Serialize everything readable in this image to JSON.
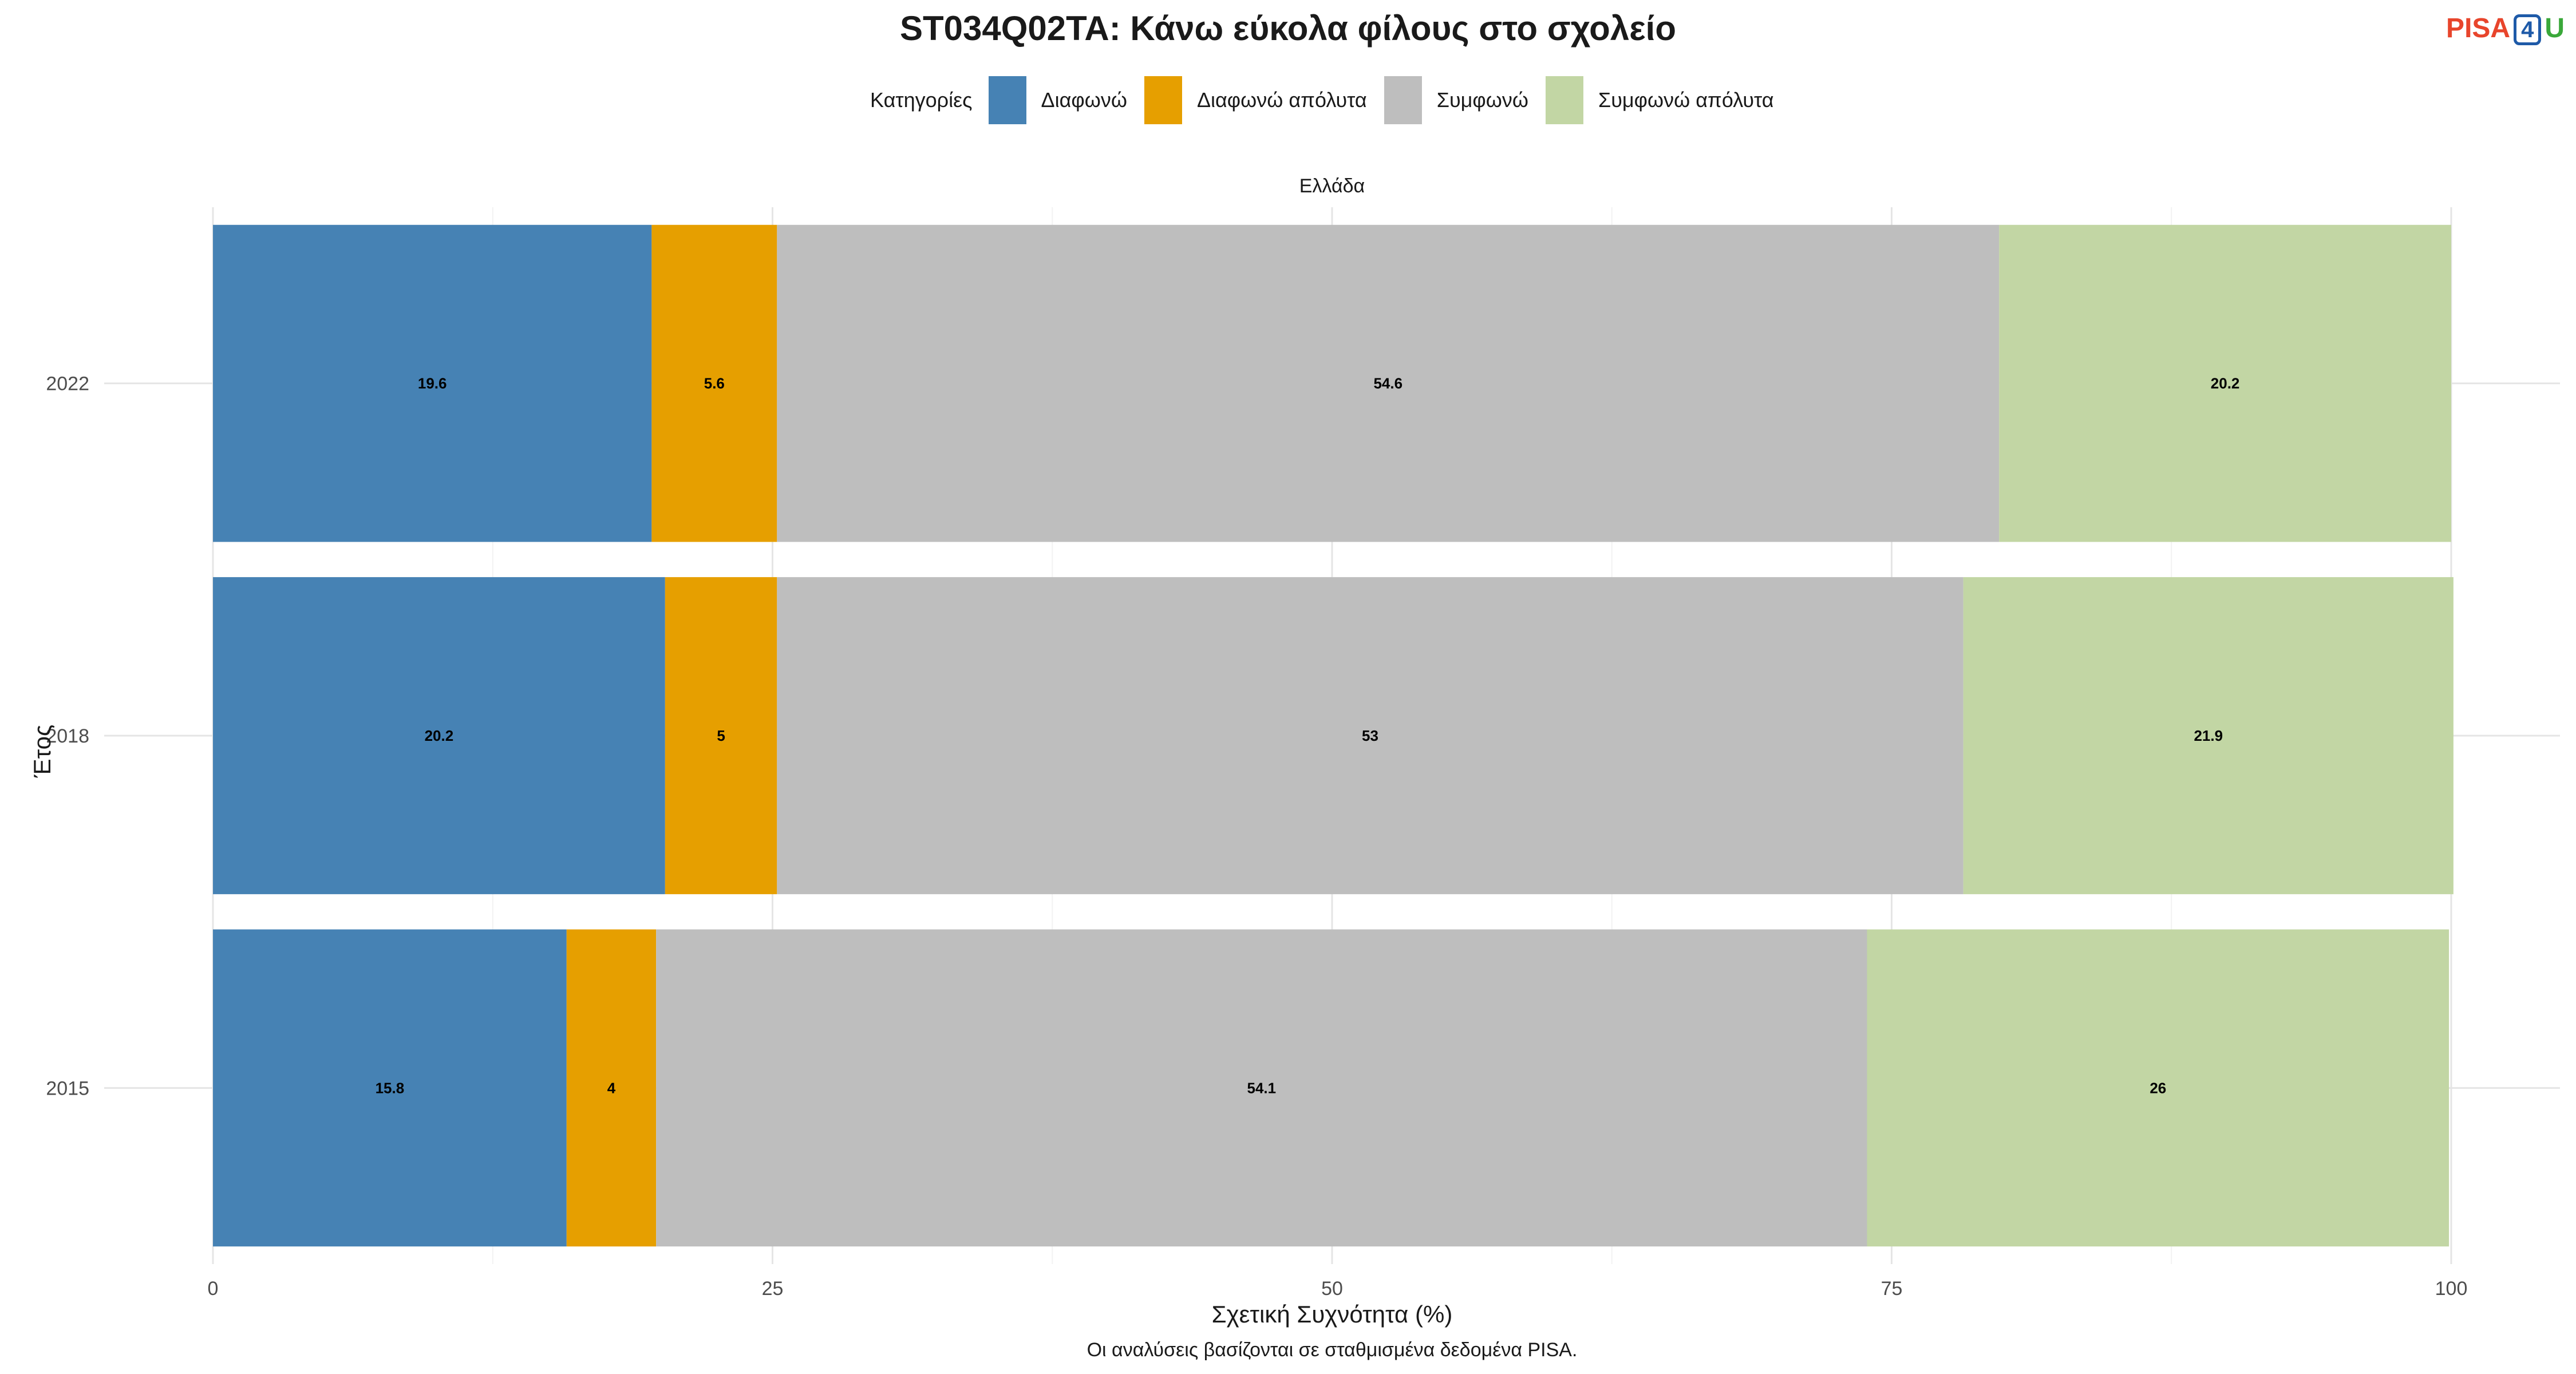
{
  "chart_data": {
    "type": "bar",
    "orientation": "horizontal",
    "stacked": true,
    "title": "ST034Q02TA: Κάνω εύκολα φίλους στο σχολείο",
    "xlabel": "Σχετική Συχνότητα (%)",
    "ylabel": "Έτος",
    "facet_label": "Ελλάδα",
    "caption": "Οι αναλύσεις βασίζονται σε σταθμισμένα δεδομένα PISA.",
    "legend_title": "Κατηγορίες",
    "legend_position": "top",
    "xlim": [
      0,
      100
    ],
    "x_ticks": [
      0,
      25,
      50,
      75,
      100
    ],
    "grid": true,
    "categories": [
      "2022",
      "2018",
      "2015"
    ],
    "series": [
      {
        "name": "Διαφωνώ",
        "color": "#4682b4",
        "values": [
          19.6,
          20.2,
          15.8
        ]
      },
      {
        "name": "Διαφωνώ απόλυτα",
        "color": "#e69f00",
        "values": [
          5.6,
          5,
          4
        ]
      },
      {
        "name": "Συμφωνώ",
        "color": "#bebebe",
        "values": [
          54.6,
          53,
          54.1
        ]
      },
      {
        "name": "Συμφωνώ απόλυτα",
        "color": "#c2d6a4",
        "values": [
          20.2,
          21.9,
          26
        ]
      }
    ]
  },
  "branding": {
    "logo_part1": "PISA",
    "logo_part2": "4",
    "logo_part3": "U"
  }
}
